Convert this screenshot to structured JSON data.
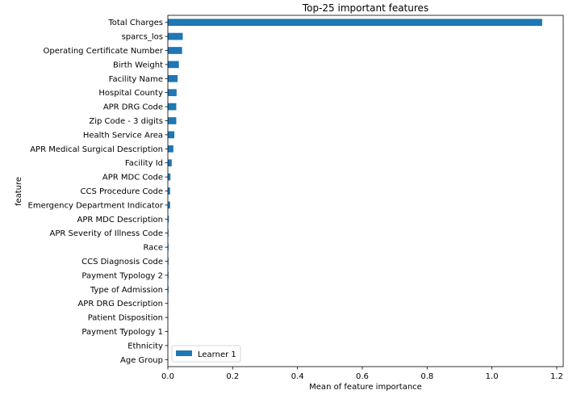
{
  "chart_data": {
    "type": "bar",
    "orientation": "horizontal",
    "title": "Top-25 important features",
    "xlabel": "Mean of feature importance",
    "ylabel": "feature",
    "xlim": [
      0,
      1.22
    ],
    "xticks": [
      0,
      0.2,
      0.4,
      0.6,
      0.8,
      1.0,
      1.2
    ],
    "xtick_labels": [
      "0.0",
      "0.2",
      "0.4",
      "0.6",
      "0.8",
      "1.0",
      "1.2"
    ],
    "grid": false,
    "legend_position": "bottom-left",
    "bar_color": "#1f77b4",
    "categories": [
      "Total Charges",
      "sparcs_los",
      "Operating Certificate Number",
      "Birth Weight",
      "Facility Name",
      "Hospital County",
      "APR DRG Code",
      "Zip Code - 3 digits",
      "Health Service Area",
      "APR Medical Surgical Description",
      "Facility Id",
      "APR MDC Code",
      "CCS Procedure Code",
      "Emergency Department Indicator",
      "APR MDC Description",
      "APR Severity of Illness Code",
      "Race",
      "CCS Diagnosis Code",
      "Payment Typology 2",
      "Type of Admission",
      "APR DRG Description",
      "Patient Disposition",
      "Payment Typology 1",
      "Ethnicity",
      "Age Group"
    ],
    "series": [
      {
        "name": "Learner 1",
        "values": [
          1.155,
          0.046,
          0.044,
          0.034,
          0.03,
          0.027,
          0.026,
          0.026,
          0.02,
          0.017,
          0.012,
          0.008,
          0.007,
          0.007,
          0.003,
          0.002,
          0.002,
          0.002,
          0.002,
          0.002,
          0.001,
          0.001,
          0.001,
          0.001,
          0.001
        ]
      }
    ]
  }
}
